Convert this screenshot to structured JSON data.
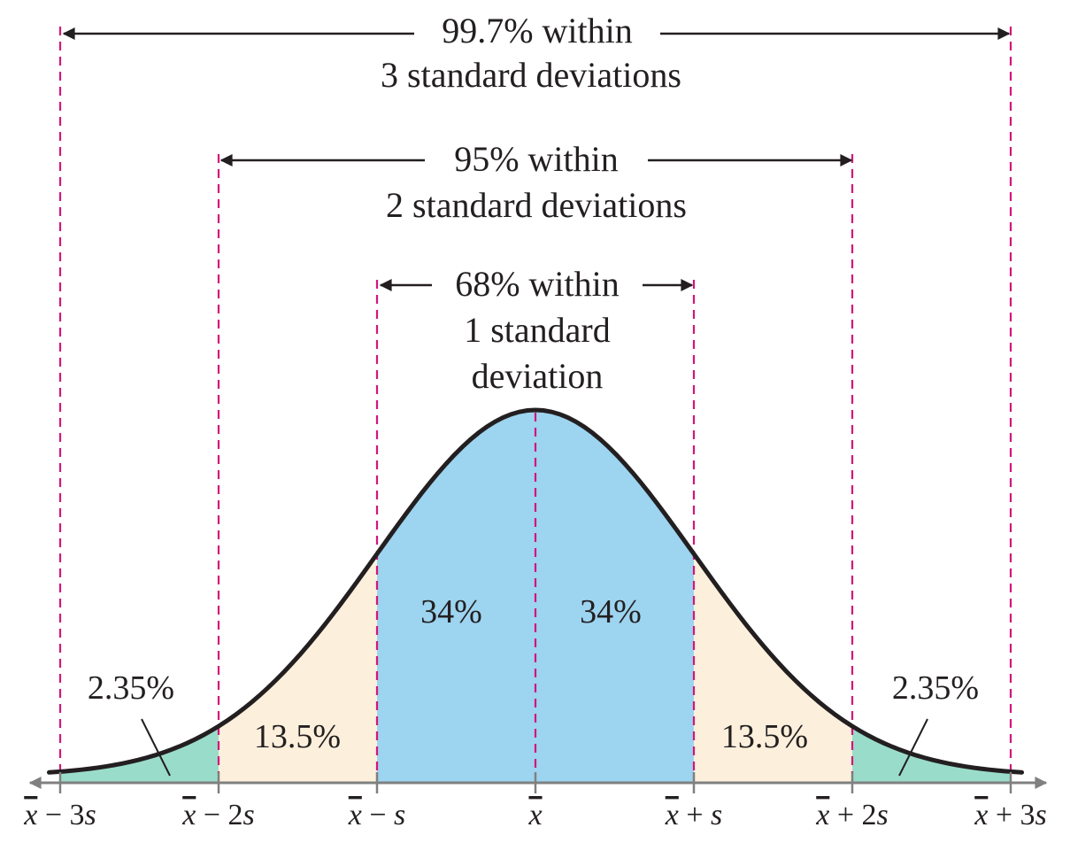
{
  "colors": {
    "center": "#9dd4f0",
    "middle": "#fcf0dc",
    "tail": "#9adcca",
    "dash": "#d4167a",
    "curve": "#231f20",
    "axis": "#808080",
    "arrow": "#231f20"
  },
  "ranges": {
    "r997": {
      "line1": "99.7% within",
      "line2": "3 standard deviations"
    },
    "r95": {
      "line1": "95% within",
      "line2": "2 standard deviations"
    },
    "r68": {
      "line1": "68% within",
      "line2": "1 standard",
      "line3": "deviation"
    }
  },
  "regions": {
    "left_tail": "2.35%",
    "left_mid": "13.5%",
    "left_center": "34%",
    "right_center": "34%",
    "right_mid": "13.5%",
    "right_tail": "2.35%"
  },
  "ticks": [
    {
      "x": "x",
      "suffix": " − 3",
      "s": "s"
    },
    {
      "x": "x",
      "suffix": " − 2",
      "s": "s"
    },
    {
      "x": "x",
      "suffix": " − ",
      "s": "s"
    },
    {
      "x": "x",
      "suffix": "",
      "s": ""
    },
    {
      "x": "x",
      "suffix": " + ",
      "s": "s"
    },
    {
      "x": "x",
      "suffix": " + 2",
      "s": "s"
    },
    {
      "x": "x",
      "suffix": " + 3",
      "s": "s"
    }
  ],
  "chart_data": {
    "type": "area",
    "distribution": "normal",
    "x": [
      -3,
      -2,
      -1,
      0,
      1,
      2,
      3
    ],
    "region_percentages": [
      2.35,
      13.5,
      34,
      34,
      13.5,
      2.35
    ]
  }
}
